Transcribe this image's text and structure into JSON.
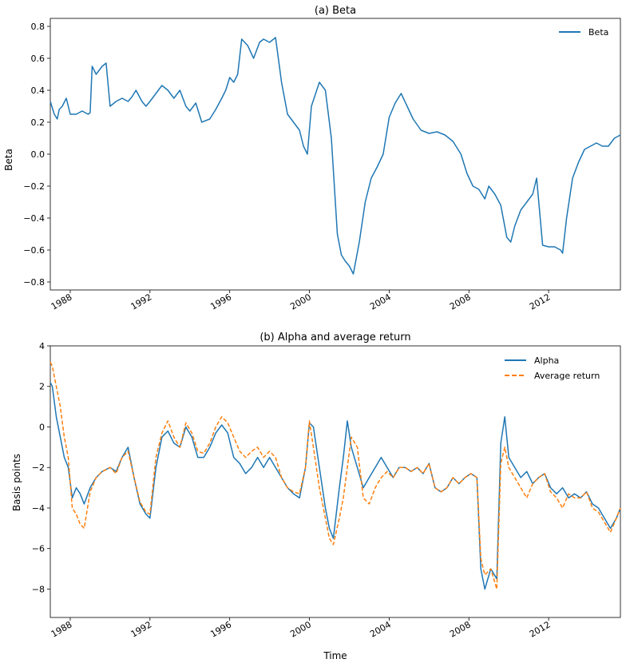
{
  "chart_data": [
    {
      "type": "line",
      "title": "(a) Beta",
      "xlabel": "",
      "ylabel": "Beta",
      "xlim": [
        1987.0,
        2015.6
      ],
      "ylim": [
        -0.85,
        0.85
      ],
      "yticks": [
        -0.8,
        -0.6,
        -0.4,
        -0.2,
        0.0,
        0.2,
        0.4,
        0.6,
        0.8
      ],
      "ytick_labels": [
        "−0.8",
        "−0.6",
        "−0.4",
        "−0.2",
        "0.0",
        "0.2",
        "0.4",
        "0.6",
        "0.8"
      ],
      "xticks": [
        1988,
        1992,
        1996,
        2000,
        2004,
        2008,
        2012
      ],
      "xtick_labels": [
        "1988",
        "1992",
        "1996",
        "2000",
        "2004",
        "2008",
        "2012"
      ],
      "legend_position": "top-right",
      "grid": false,
      "series": [
        {
          "name": "Beta",
          "color": "#1f77b4",
          "style": "solid",
          "x": [
            1987.0,
            1987.2,
            1987.35,
            1987.45,
            1987.6,
            1987.8,
            1988.0,
            1988.3,
            1988.6,
            1988.9,
            1989.0,
            1989.1,
            1989.3,
            1989.6,
            1989.8,
            1990.0,
            1990.3,
            1990.6,
            1990.9,
            1991.1,
            1991.3,
            1991.6,
            1991.8,
            1992.0,
            1992.3,
            1992.6,
            1992.9,
            1993.2,
            1993.5,
            1993.8,
            1994.0,
            1994.3,
            1994.6,
            1995.0,
            1995.3,
            1995.6,
            1995.8,
            1996.0,
            1996.2,
            1996.4,
            1996.6,
            1996.9,
            1997.2,
            1997.5,
            1997.7,
            1998.0,
            1998.3,
            1998.6,
            1998.9,
            1999.2,
            1999.5,
            1999.7,
            1999.9,
            2000.1,
            2000.5,
            2000.8,
            2001.1,
            2001.4,
            2001.6,
            2001.8,
            2002.0,
            2002.2,
            2002.5,
            2002.8,
            2003.1,
            2003.4,
            2003.7,
            2004.0,
            2004.3,
            2004.6,
            2004.9,
            2005.2,
            2005.6,
            2006.0,
            2006.4,
            2006.8,
            2007.2,
            2007.6,
            2007.9,
            2008.2,
            2008.5,
            2008.8,
            2009.0,
            2009.3,
            2009.6,
            2009.9,
            2010.1,
            2010.3,
            2010.6,
            2010.9,
            2011.2,
            2011.4,
            2011.7,
            2012.0,
            2012.3,
            2012.6,
            2012.7,
            2012.9,
            2013.2,
            2013.5,
            2013.8,
            2014.1,
            2014.4,
            2014.7,
            2015.0,
            2015.3,
            2015.6
          ],
          "y": [
            0.33,
            0.25,
            0.22,
            0.28,
            0.3,
            0.35,
            0.25,
            0.25,
            0.27,
            0.25,
            0.26,
            0.55,
            0.5,
            0.55,
            0.57,
            0.3,
            0.33,
            0.35,
            0.33,
            0.36,
            0.4,
            0.33,
            0.3,
            0.33,
            0.38,
            0.43,
            0.4,
            0.35,
            0.4,
            0.3,
            0.27,
            0.32,
            0.2,
            0.22,
            0.28,
            0.35,
            0.4,
            0.48,
            0.45,
            0.5,
            0.72,
            0.68,
            0.6,
            0.7,
            0.72,
            0.7,
            0.73,
            0.45,
            0.25,
            0.2,
            0.15,
            0.05,
            0.0,
            0.3,
            0.45,
            0.4,
            0.1,
            -0.5,
            -0.63,
            -0.67,
            -0.7,
            -0.75,
            -0.55,
            -0.3,
            -0.15,
            -0.08,
            0.0,
            0.23,
            0.32,
            0.38,
            0.3,
            0.22,
            0.15,
            0.13,
            0.14,
            0.12,
            0.08,
            0.0,
            -0.12,
            -0.2,
            -0.22,
            -0.28,
            -0.2,
            -0.25,
            -0.32,
            -0.52,
            -0.55,
            -0.45,
            -0.35,
            -0.3,
            -0.25,
            -0.15,
            -0.57,
            -0.58,
            -0.58,
            -0.6,
            -0.62,
            -0.4,
            -0.15,
            -0.05,
            0.03,
            0.05,
            0.07,
            0.05,
            0.05,
            0.1,
            0.12
          ]
        }
      ]
    },
    {
      "type": "line",
      "title": "(b) Alpha and average return",
      "xlabel": "Time",
      "ylabel": "Basis points",
      "xlim": [
        1987.0,
        2015.6
      ],
      "ylim": [
        -9.4,
        4.0
      ],
      "yticks": [
        -8,
        -6,
        -4,
        -2,
        0,
        2,
        4
      ],
      "ytick_labels": [
        "−8",
        "−6",
        "−4",
        "−2",
        "0",
        "2",
        "4"
      ],
      "xticks": [
        1988,
        1992,
        1996,
        2000,
        2004,
        2008,
        2012
      ],
      "xtick_labels": [
        "1988",
        "1992",
        "1996",
        "2000",
        "2004",
        "2008",
        "2012"
      ],
      "legend_position": "top-right",
      "grid": false,
      "series": [
        {
          "name": "Alpha",
          "color": "#1f77b4",
          "style": "solid",
          "x": [
            1987.0,
            1987.1,
            1987.3,
            1987.5,
            1987.7,
            1987.9,
            1988.1,
            1988.3,
            1988.5,
            1988.7,
            1989.0,
            1989.3,
            1989.6,
            1990.0,
            1990.3,
            1990.6,
            1990.9,
            1991.2,
            1991.5,
            1991.8,
            1992.0,
            1992.3,
            1992.6,
            1992.9,
            1993.2,
            1993.5,
            1993.8,
            1994.1,
            1994.4,
            1994.7,
            1995.0,
            1995.3,
            1995.6,
            1995.9,
            1996.2,
            1996.5,
            1996.8,
            1997.1,
            1997.4,
            1997.7,
            1998.0,
            1998.3,
            1998.6,
            1998.9,
            1999.2,
            1999.5,
            1999.8,
            2000.0,
            2000.2,
            2000.5,
            2000.8,
            2001.0,
            2001.2,
            2001.5,
            2001.7,
            2001.9,
            2002.1,
            2002.4,
            2002.7,
            2003.0,
            2003.3,
            2003.6,
            2003.9,
            2004.2,
            2004.5,
            2004.8,
            2005.1,
            2005.4,
            2005.7,
            2006.0,
            2006.3,
            2006.6,
            2006.9,
            2007.2,
            2007.5,
            2007.8,
            2008.1,
            2008.4,
            2008.6,
            2008.8,
            2009.1,
            2009.4,
            2009.6,
            2009.8,
            2010.0,
            2010.3,
            2010.6,
            2010.9,
            2011.2,
            2011.5,
            2011.8,
            2012.1,
            2012.4,
            2012.7,
            2013.0,
            2013.3,
            2013.6,
            2013.9,
            2014.2,
            2014.5,
            2014.8,
            2015.1,
            2015.4,
            2015.6
          ],
          "y": [
            2.2,
            2.0,
            0.5,
            -0.5,
            -1.5,
            -2.0,
            -3.5,
            -3.0,
            -3.3,
            -3.8,
            -3.0,
            -2.5,
            -2.2,
            -2.0,
            -2.2,
            -1.5,
            -1.0,
            -2.5,
            -3.8,
            -4.3,
            -4.5,
            -2.0,
            -0.5,
            -0.2,
            -0.8,
            -1.0,
            0.0,
            -0.5,
            -1.5,
            -1.5,
            -1.0,
            -0.3,
            0.1,
            -0.3,
            -1.5,
            -1.8,
            -2.3,
            -2.0,
            -1.5,
            -2.0,
            -1.5,
            -2.0,
            -2.5,
            -3.0,
            -3.3,
            -3.5,
            -2.0,
            0.2,
            0.0,
            -2.0,
            -4.0,
            -5.0,
            -5.5,
            -3.0,
            -1.5,
            0.3,
            -1.0,
            -2.0,
            -3.0,
            -2.5,
            -2.0,
            -1.5,
            -2.0,
            -2.5,
            -2.0,
            -2.0,
            -2.2,
            -2.0,
            -2.3,
            -1.8,
            -3.0,
            -3.2,
            -3.0,
            -2.5,
            -2.8,
            -2.5,
            -2.3,
            -2.5,
            -7.0,
            -8.0,
            -7.0,
            -7.5,
            -0.8,
            0.5,
            -1.5,
            -2.0,
            -2.5,
            -2.2,
            -2.8,
            -2.5,
            -2.3,
            -3.0,
            -3.3,
            -3.0,
            -3.5,
            -3.3,
            -3.5,
            -3.2,
            -3.8,
            -4.0,
            -4.5,
            -5.0,
            -4.5,
            -4.0
          ]
        },
        {
          "name": "Average return",
          "color": "#ff7f0e",
          "style": "dashed",
          "x": [
            1987.0,
            1987.1,
            1987.3,
            1987.5,
            1987.7,
            1987.9,
            1988.1,
            1988.3,
            1988.5,
            1988.7,
            1989.0,
            1989.3,
            1989.6,
            1990.0,
            1990.3,
            1990.6,
            1990.9,
            1991.2,
            1991.5,
            1991.8,
            1992.0,
            1992.3,
            1992.6,
            1992.9,
            1993.2,
            1993.5,
            1993.8,
            1994.1,
            1994.4,
            1994.7,
            1995.0,
            1995.3,
            1995.6,
            1995.9,
            1996.2,
            1996.5,
            1996.8,
            1997.1,
            1997.4,
            1997.7,
            1998.0,
            1998.3,
            1998.6,
            1998.9,
            1999.2,
            1999.5,
            1999.8,
            2000.0,
            2000.2,
            2000.5,
            2000.8,
            2001.0,
            2001.2,
            2001.5,
            2001.7,
            2001.9,
            2002.1,
            2002.4,
            2002.7,
            2003.0,
            2003.3,
            2003.6,
            2003.9,
            2004.2,
            2004.5,
            2004.8,
            2005.1,
            2005.4,
            2005.7,
            2006.0,
            2006.3,
            2006.6,
            2006.9,
            2007.2,
            2007.5,
            2007.8,
            2008.1,
            2008.4,
            2008.6,
            2008.8,
            2009.1,
            2009.4,
            2009.6,
            2009.8,
            2010.0,
            2010.3,
            2010.6,
            2010.9,
            2011.2,
            2011.5,
            2011.8,
            2012.1,
            2012.4,
            2012.7,
            2013.0,
            2013.3,
            2013.6,
            2013.9,
            2014.2,
            2014.5,
            2014.8,
            2015.1,
            2015.4,
            2015.6
          ],
          "y": [
            3.2,
            3.0,
            2.0,
            1.0,
            -0.5,
            -1.5,
            -4.0,
            -4.3,
            -4.8,
            -5.0,
            -3.2,
            -2.5,
            -2.2,
            -2.0,
            -2.3,
            -1.5,
            -1.2,
            -2.5,
            -3.7,
            -4.2,
            -4.3,
            -1.5,
            -0.3,
            0.3,
            -0.5,
            -1.0,
            0.2,
            -0.3,
            -1.2,
            -1.3,
            -0.8,
            0.0,
            0.5,
            0.2,
            -0.5,
            -1.2,
            -1.5,
            -1.2,
            -1.0,
            -1.5,
            -1.2,
            -1.5,
            -2.5,
            -3.0,
            -3.2,
            -3.3,
            -2.0,
            0.3,
            -1.0,
            -3.0,
            -4.5,
            -5.5,
            -5.8,
            -4.5,
            -3.5,
            -2.0,
            -0.5,
            -1.0,
            -3.5,
            -3.8,
            -3.0,
            -2.5,
            -2.2,
            -2.5,
            -2.0,
            -2.0,
            -2.2,
            -2.0,
            -2.3,
            -1.8,
            -3.0,
            -3.2,
            -3.0,
            -2.5,
            -2.8,
            -2.5,
            -2.3,
            -2.5,
            -6.5,
            -7.3,
            -7.0,
            -8.0,
            -1.8,
            -1.0,
            -2.0,
            -2.5,
            -3.0,
            -3.5,
            -2.8,
            -2.5,
            -2.3,
            -3.2,
            -3.5,
            -4.0,
            -3.3,
            -3.5,
            -3.5,
            -3.2,
            -4.0,
            -4.2,
            -4.7,
            -5.2,
            -4.5,
            -4.0
          ]
        }
      ]
    }
  ]
}
